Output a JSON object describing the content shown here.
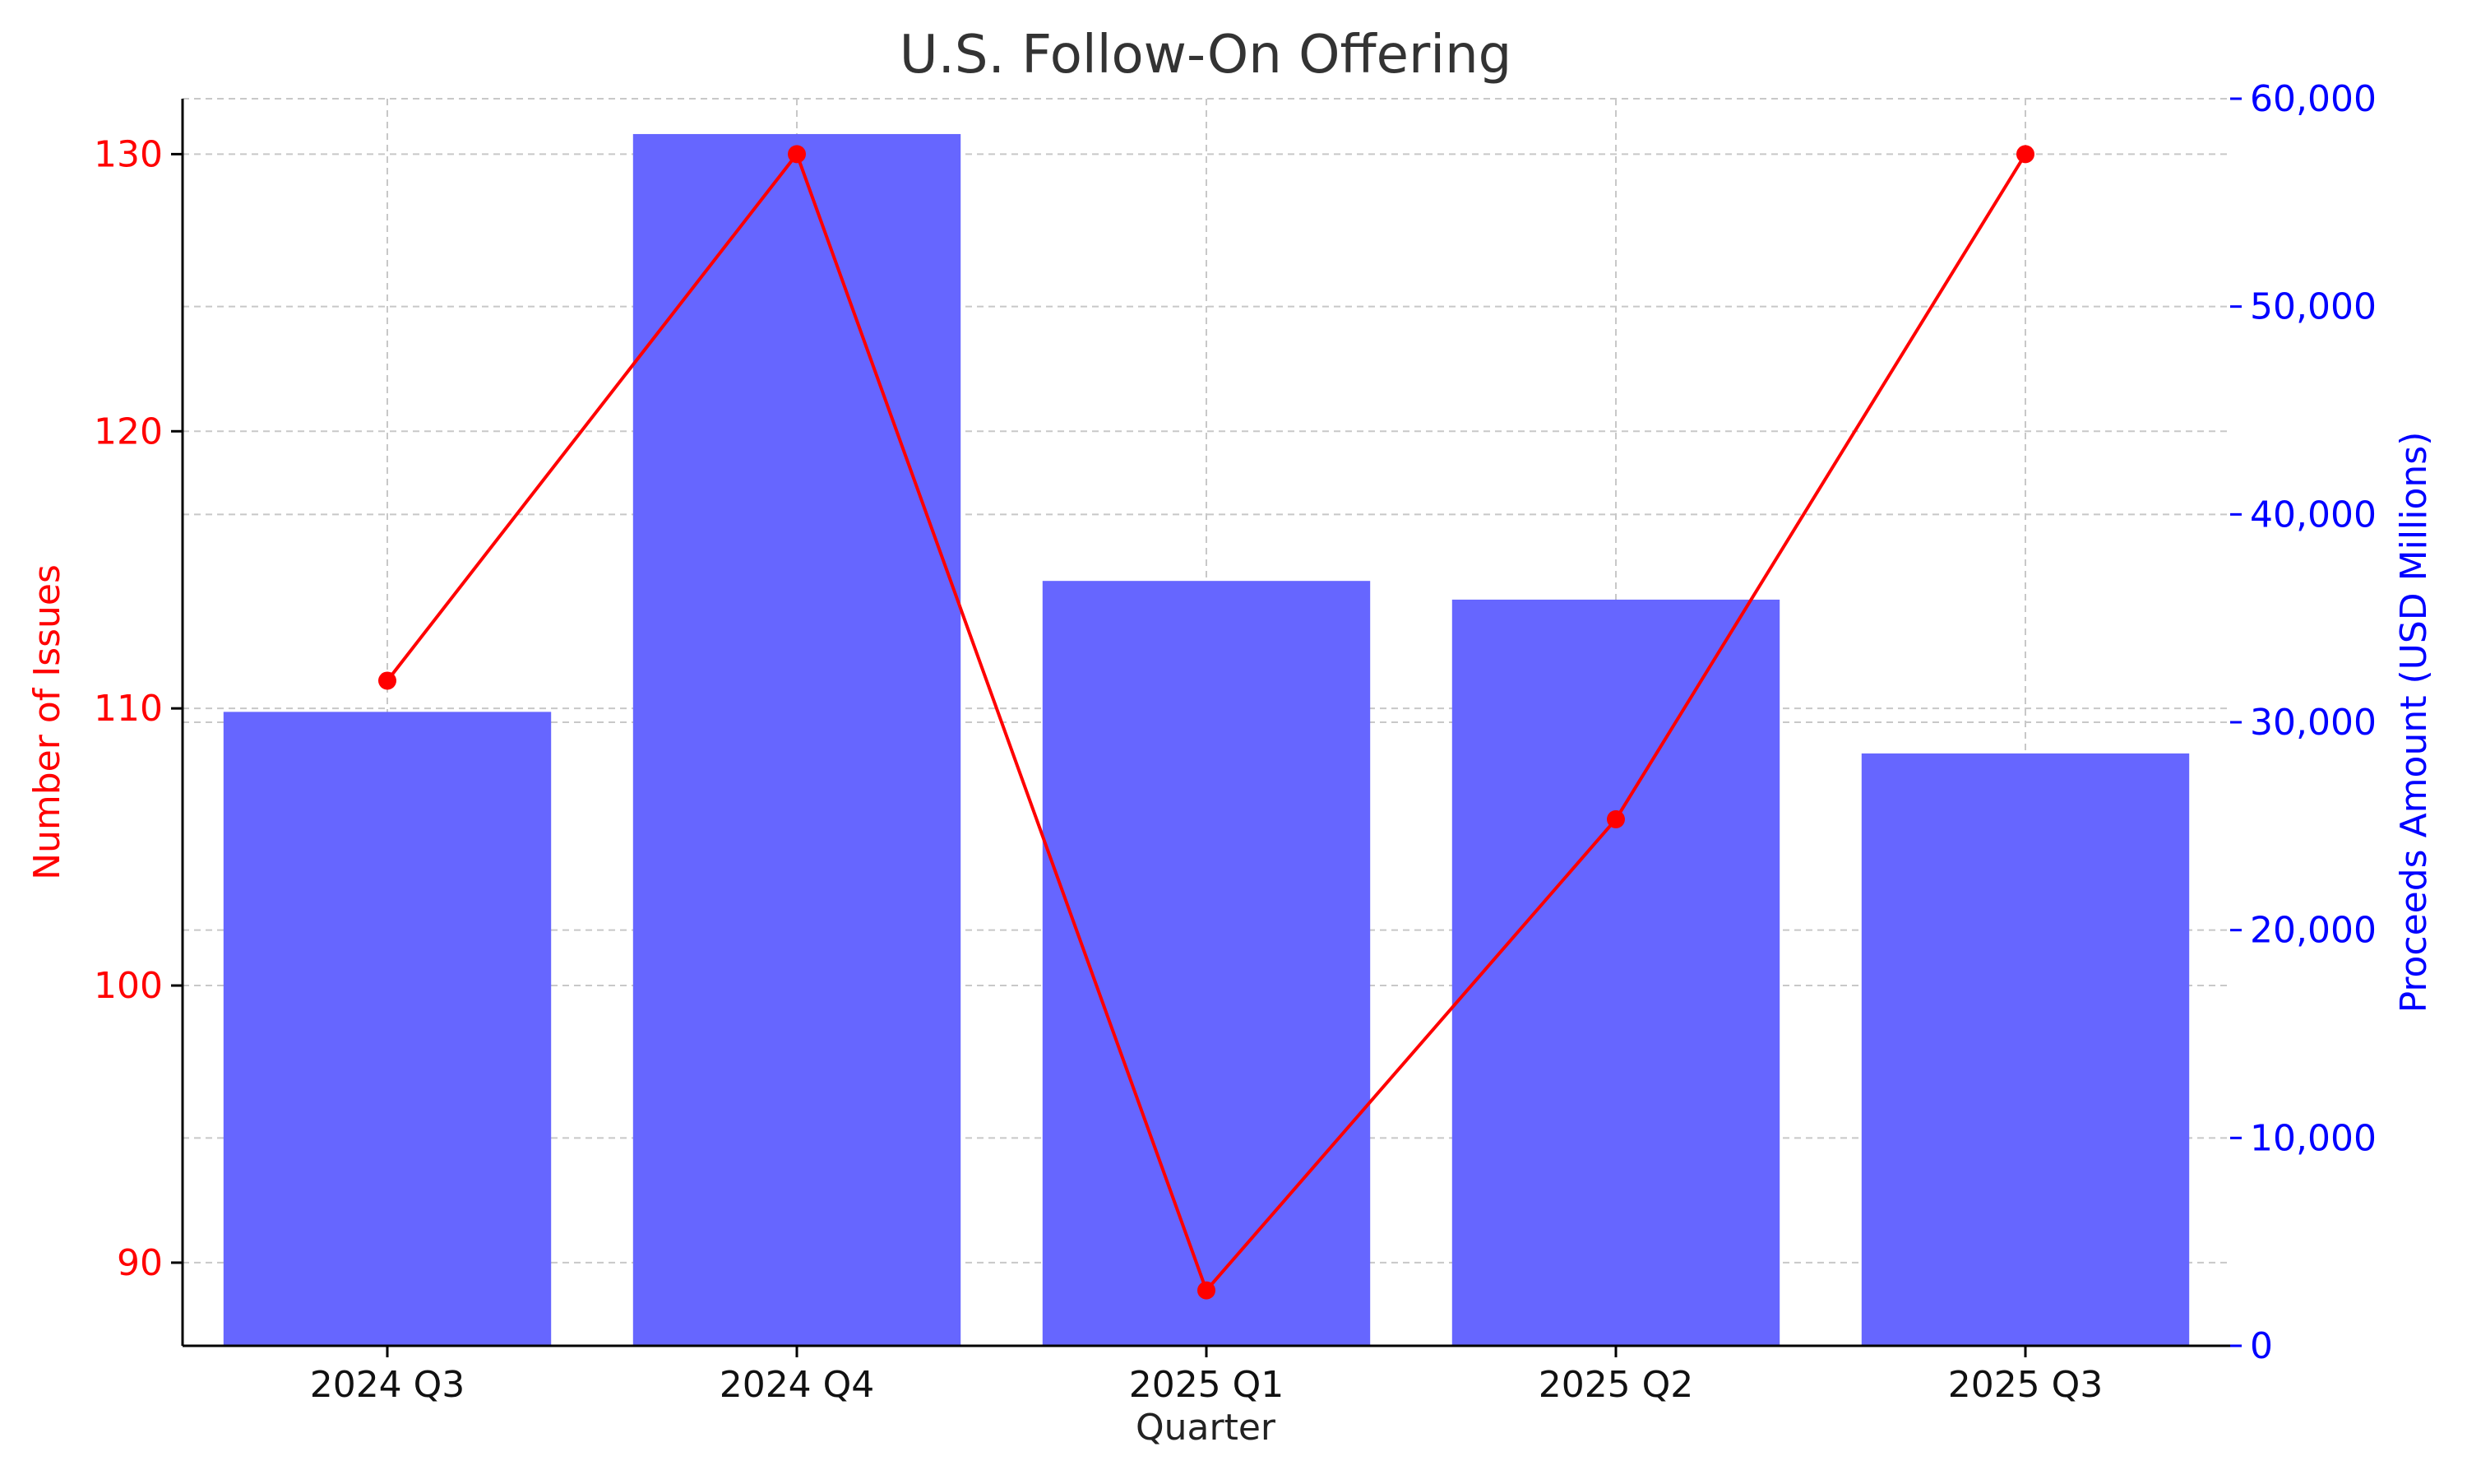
{
  "chart_data": {
    "type": "bar",
    "title": "U.S. Follow-On Offering",
    "xlabel": "Quarter",
    "ylabel_left": "Number of Issues",
    "ylabel_right": "Proceeds Amount (USD Millions)",
    "categories": [
      "2024 Q3",
      "2024 Q4",
      "2025 Q1",
      "2025 Q2",
      "2025 Q3"
    ],
    "series": [
      {
        "name": "Proceeds Amount (USD Millions)",
        "type": "bar",
        "axis": "right",
        "color": "#6666ff",
        "values": [
          30500,
          58300,
          36800,
          35900,
          28500
        ]
      },
      {
        "name": "Number of Issues",
        "type": "line",
        "axis": "left",
        "color": "#ff0000",
        "values": [
          111,
          130,
          89,
          106,
          130
        ]
      }
    ],
    "ylim_left": [
      87,
      132
    ],
    "ylim_right": [
      0,
      60000
    ],
    "yticks_left": [
      90,
      100,
      110,
      120,
      130
    ],
    "yticks_right": [
      0,
      10000,
      20000,
      30000,
      40000,
      50000,
      60000
    ],
    "ytick_labels_right": [
      "0",
      "10,000",
      "20,000",
      "30,000",
      "40,000",
      "50,000",
      "60,000"
    ],
    "grid": true,
    "colors": {
      "left_axis": "#ff0000",
      "right_axis": "#0000ff",
      "bar": "#6666ff",
      "line": "#ff0000",
      "grid": "#c8c8c8"
    }
  }
}
